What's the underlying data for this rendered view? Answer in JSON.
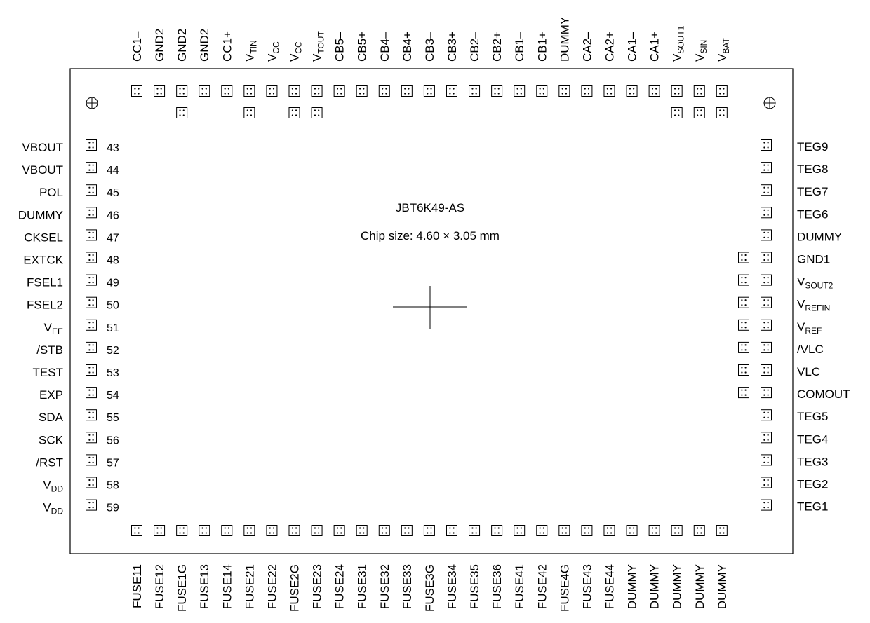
{
  "chip": {
    "name": "JBT6K49-AS",
    "size_label": "Chip size: 4.60 × 3.05 mm"
  },
  "top_pads": {
    "labels": [
      {
        "main": "CC1–",
        "sub": ""
      },
      {
        "main": "GND2",
        "sub": ""
      },
      {
        "main": "GND2",
        "sub": ""
      },
      {
        "main": "GND2",
        "sub": ""
      },
      {
        "main": "CC1+",
        "sub": ""
      },
      {
        "main": "V",
        "sub": "TIN"
      },
      {
        "main": "V",
        "sub": "CC"
      },
      {
        "main": "V",
        "sub": "CC"
      },
      {
        "main": "V",
        "sub": "TOUT"
      },
      {
        "main": "CB5–",
        "sub": ""
      },
      {
        "main": "CB5+",
        "sub": ""
      },
      {
        "main": "CB4–",
        "sub": ""
      },
      {
        "main": "CB4+",
        "sub": ""
      },
      {
        "main": "CB3–",
        "sub": ""
      },
      {
        "main": "CB3+",
        "sub": ""
      },
      {
        "main": "CB2–",
        "sub": ""
      },
      {
        "main": "CB2+",
        "sub": ""
      },
      {
        "main": "CB1–",
        "sub": ""
      },
      {
        "main": "CB1+",
        "sub": ""
      },
      {
        "main": "DUMMY",
        "sub": ""
      },
      {
        "main": "CA2–",
        "sub": ""
      },
      {
        "main": "CA2+",
        "sub": ""
      },
      {
        "main": "CA1–",
        "sub": ""
      },
      {
        "main": "CA1+",
        "sub": ""
      },
      {
        "main": "V",
        "sub": "SOUT1"
      },
      {
        "main": "V",
        "sub": "SIN"
      },
      {
        "main": "V",
        "sub": "BAT"
      }
    ],
    "double_pad_indices": [
      2,
      5,
      7,
      8,
      24,
      25,
      26
    ]
  },
  "left_pads": [
    {
      "main": "VBOUT",
      "sub": "",
      "num": "43"
    },
    {
      "main": "VBOUT",
      "sub": "",
      "num": "44"
    },
    {
      "main": "POL",
      "sub": "",
      "num": "45"
    },
    {
      "main": "DUMMY",
      "sub": "",
      "num": "46"
    },
    {
      "main": "CKSEL",
      "sub": "",
      "num": "47"
    },
    {
      "main": "EXTCK",
      "sub": "",
      "num": "48"
    },
    {
      "main": "FSEL1",
      "sub": "",
      "num": "49"
    },
    {
      "main": "FSEL2",
      "sub": "",
      "num": "50"
    },
    {
      "main": "V",
      "sub": "EE",
      "num": "51"
    },
    {
      "main": "/STB",
      "sub": "",
      "num": "52"
    },
    {
      "main": "TEST",
      "sub": "",
      "num": "53"
    },
    {
      "main": "EXP",
      "sub": "",
      "num": "54"
    },
    {
      "main": "SDA",
      "sub": "",
      "num": "55"
    },
    {
      "main": "SCK",
      "sub": "",
      "num": "56"
    },
    {
      "main": "/RST",
      "sub": "",
      "num": "57"
    },
    {
      "main": "V",
      "sub": "DD",
      "num": "58"
    },
    {
      "main": "V",
      "sub": "DD",
      "num": "59"
    }
  ],
  "right_pads": [
    {
      "main": "TEG9",
      "sub": "",
      "double": false
    },
    {
      "main": "TEG8",
      "sub": "",
      "double": false
    },
    {
      "main": "TEG7",
      "sub": "",
      "double": false
    },
    {
      "main": "TEG6",
      "sub": "",
      "double": false
    },
    {
      "main": "DUMMY",
      "sub": "",
      "double": false
    },
    {
      "main": "GND1",
      "sub": "",
      "double": true
    },
    {
      "main": "V",
      "sub": "SOUT2",
      "double": true
    },
    {
      "main": "V",
      "sub": "REFIN",
      "double": true
    },
    {
      "main": "V",
      "sub": "REF",
      "double": true
    },
    {
      "main": "/VLC",
      "sub": "",
      "double": true
    },
    {
      "main": "VLC",
      "sub": "",
      "double": true
    },
    {
      "main": "COMOUT",
      "sub": "",
      "double": true
    },
    {
      "main": "TEG5",
      "sub": "",
      "double": false
    },
    {
      "main": "TEG4",
      "sub": "",
      "double": false
    },
    {
      "main": "TEG3",
      "sub": "",
      "double": false
    },
    {
      "main": "TEG2",
      "sub": "",
      "double": false
    },
    {
      "main": "TEG1",
      "sub": "",
      "double": false
    }
  ],
  "bottom_pads": [
    "FUSE11",
    "FUSE12",
    "FUSE1G",
    "FUSE13",
    "FUSE14",
    "FUSE21",
    "FUSE22",
    "FUSE2G",
    "FUSE23",
    "FUSE24",
    "FUSE31",
    "FUSE32",
    "FUSE33",
    "FUSE3G",
    "FUSE34",
    "FUSE35",
    "FUSE36",
    "FUSE41",
    "FUSE42",
    "FUSE4G",
    "FUSE43",
    "FUSE44",
    "DUMMY",
    "DUMMY",
    "DUMMY",
    "DUMMY",
    "DUMMY"
  ],
  "icons": {
    "alignment_mark": "crosshair-circle-icon",
    "center_mark": "center-cross-icon",
    "pad": "bonding-pad-icon"
  }
}
